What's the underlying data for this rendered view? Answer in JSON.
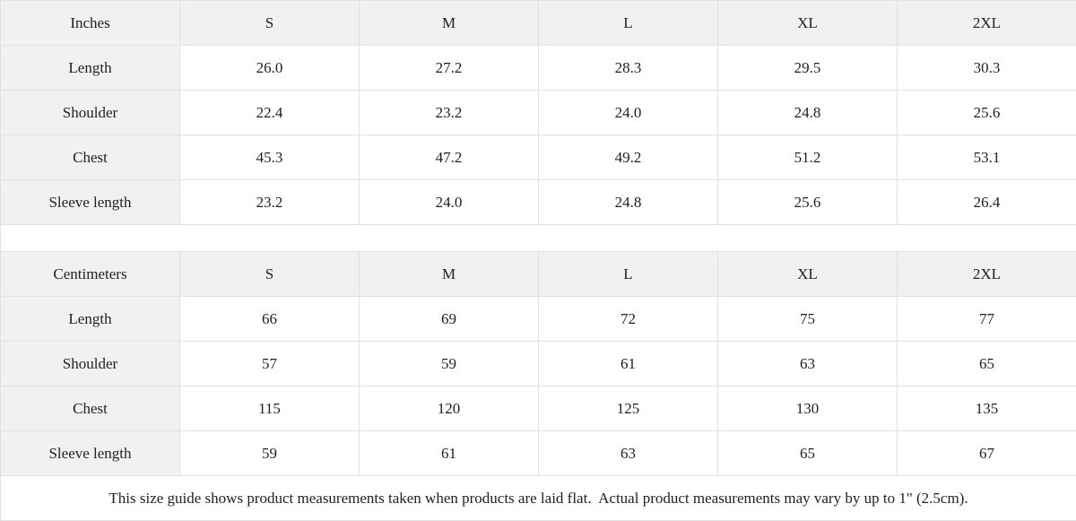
{
  "colors": {
    "header_cell_bg": "#f1f1f1",
    "value_cell_bg": "#ffffff",
    "grid_border": "#e1e1e1",
    "text": "#1f1f1f"
  },
  "tables": [
    {
      "unit_label": "Inches",
      "sizes": [
        "S",
        "M",
        "L",
        "XL",
        "2XL"
      ],
      "rows": [
        {
          "label": "Length",
          "values": [
            "26.0",
            "27.2",
            "28.3",
            "29.5",
            "30.3"
          ]
        },
        {
          "label": "Shoulder",
          "values": [
            "22.4",
            "23.2",
            "24.0",
            "24.8",
            "25.6"
          ]
        },
        {
          "label": "Chest",
          "values": [
            "45.3",
            "47.2",
            "49.2",
            "51.2",
            "53.1"
          ]
        },
        {
          "label": "Sleeve length",
          "values": [
            "23.2",
            "24.0",
            "24.8",
            "25.6",
            "26.4"
          ]
        }
      ]
    },
    {
      "unit_label": "Centimeters",
      "sizes": [
        "S",
        "M",
        "L",
        "XL",
        "2XL"
      ],
      "rows": [
        {
          "label": "Length",
          "values": [
            "66",
            "69",
            "72",
            "75",
            "77"
          ]
        },
        {
          "label": "Shoulder",
          "values": [
            "57",
            "59",
            "61",
            "63",
            "65"
          ]
        },
        {
          "label": "Chest",
          "values": [
            "115",
            "120",
            "125",
            "130",
            "135"
          ]
        },
        {
          "label": "Sleeve length",
          "values": [
            "59",
            "61",
            "63",
            "65",
            "67"
          ]
        }
      ]
    }
  ],
  "footer_note": "This size guide shows product measurements taken when products are laid flat.  Actual product measurements may vary by up to 1\" (2.5cm)."
}
